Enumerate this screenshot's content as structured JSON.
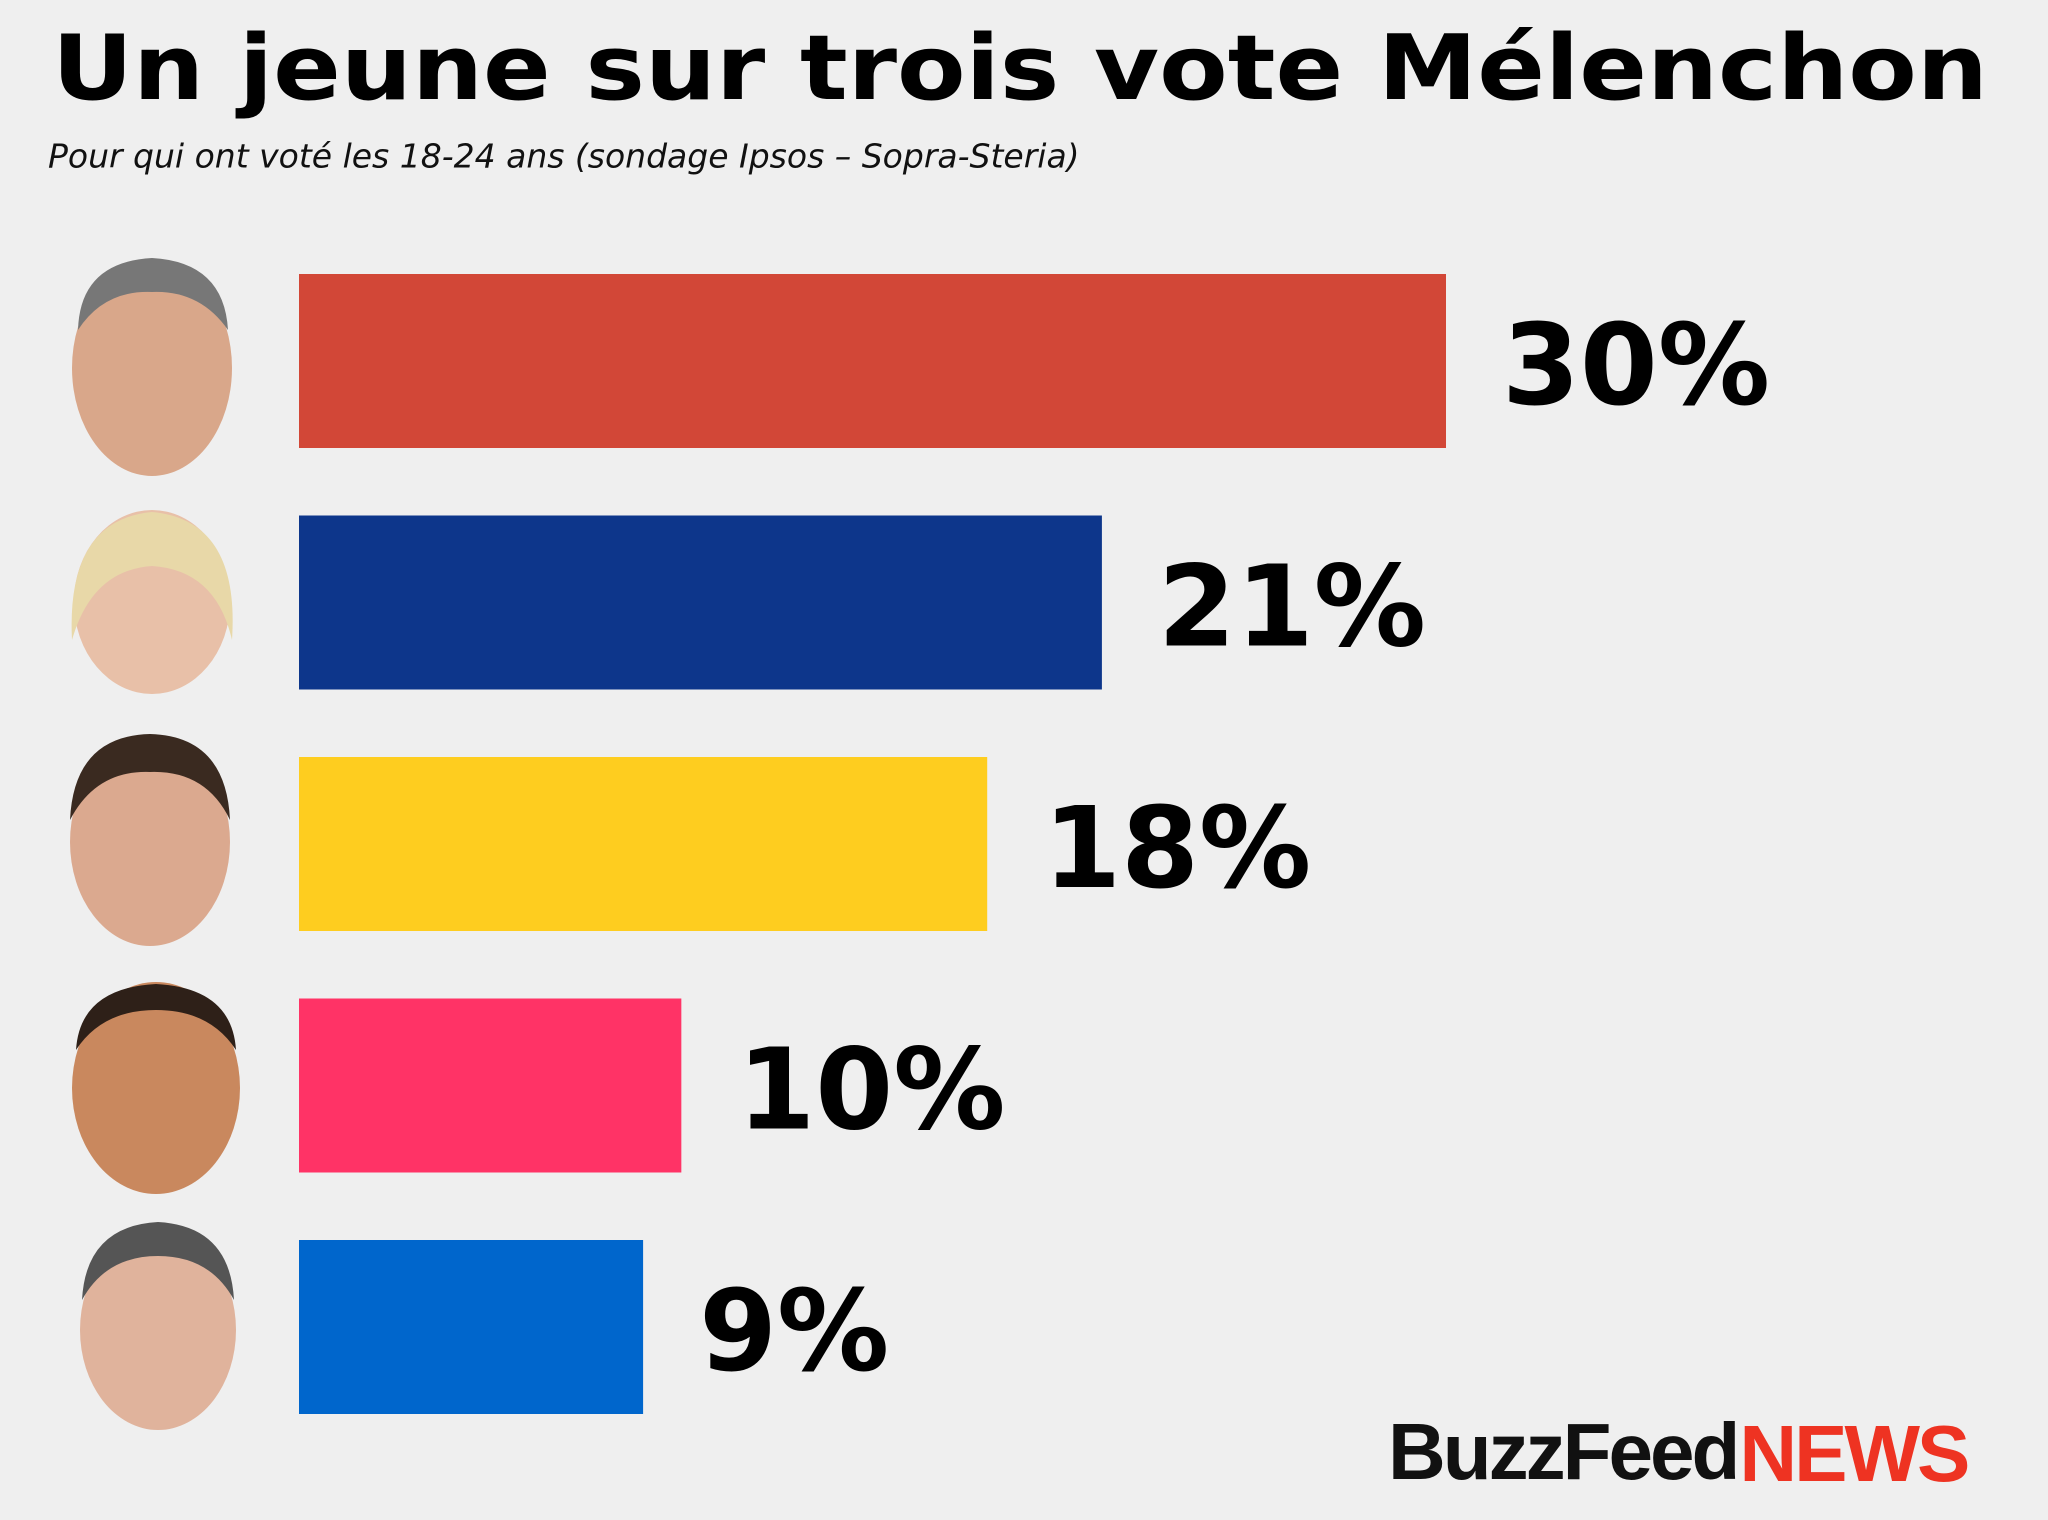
{
  "chart_data": {
    "type": "bar",
    "orientation": "horizontal",
    "title": "Un jeune sur trois vote Mélenchon",
    "subtitle": "Pour qui ont voté les 18-24 ans (sondage Ipsos – Sopra-Steria)",
    "categories": [
      null,
      null,
      null,
      null,
      null
    ],
    "values": [
      30,
      21,
      18,
      10,
      9
    ],
    "value_labels": [
      "30%",
      "21%",
      "18%",
      "10%",
      "9%"
    ],
    "colors": [
      "#d24737",
      "#0d368b",
      "#fecd1f",
      "#ff3366",
      "#0066cc"
    ],
    "xlim": [
      0,
      30
    ]
  },
  "logo": {
    "brand": "BuzzFeed",
    "suffix": "NEWS"
  }
}
